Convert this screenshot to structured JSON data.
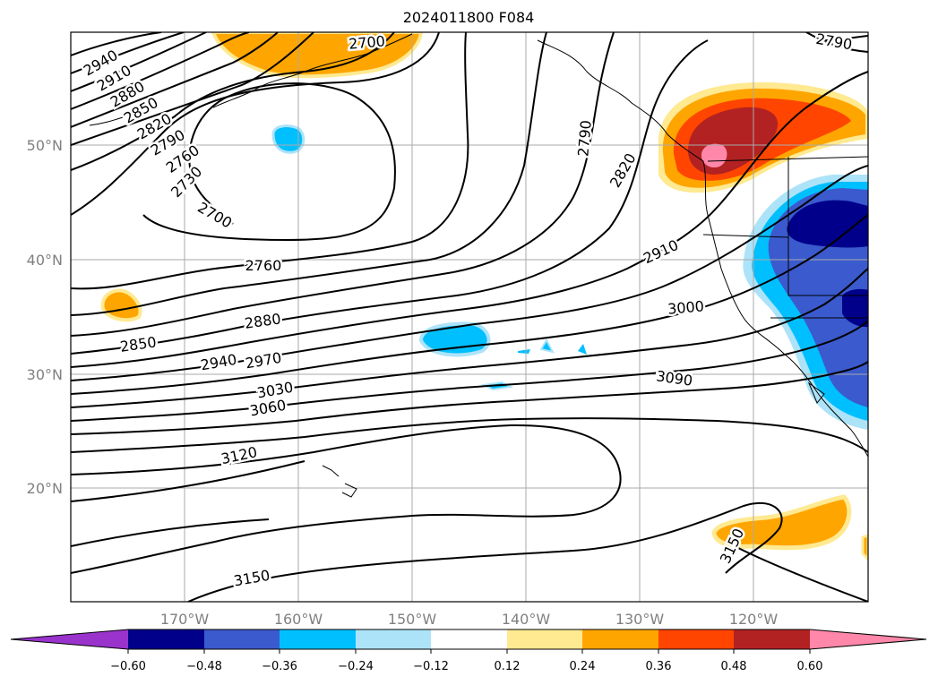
{
  "title": "2024011800 F084",
  "lat_labels": [
    "50°N",
    "40°N",
    "30°N",
    "20°N"
  ],
  "lon_labels": [
    "170°W",
    "160°W",
    "150°W",
    "140°W",
    "130°W",
    "120°W"
  ],
  "contour_labels": {
    "c2940a": "2940",
    "c2910a": "2910",
    "c2880a": "2880",
    "c2850a": "2850",
    "c2820a": "2820",
    "c2790a": "2790",
    "c2760a": "2760",
    "c2730": "2730",
    "c2700a": "2700",
    "c2700b": "2700",
    "c2760b": "2760",
    "c2880b": "2880",
    "c2850b": "2850",
    "c2940b": "2940",
    "c2970": "2970",
    "c3030": "3030",
    "c3060": "3060",
    "c3120": "3120",
    "c3150a": "3150",
    "c3150b": "3150",
    "c2790b": "2790",
    "c2820b": "2820",
    "c2910b": "2910",
    "c3000": "3000",
    "c3090": "3090",
    "c2790c": "2790"
  },
  "colorbar": {
    "ticks": [
      "−0.60",
      "−0.48",
      "−0.36",
      "−0.24",
      "−0.12",
      "0.12",
      "0.24",
      "0.36",
      "0.48",
      "0.60"
    ],
    "colors": {
      "under": "#9933cc",
      "b1": "#00008b",
      "b2": "#3a5acd",
      "b3": "#00bfff",
      "b4": "#ade3f9",
      "b5": "#ffffff",
      "b6": "#ffe991",
      "b7": "#ffa500",
      "b8": "#ff4500",
      "b9": "#b22222",
      "over": "#ff88aa"
    }
  }
}
